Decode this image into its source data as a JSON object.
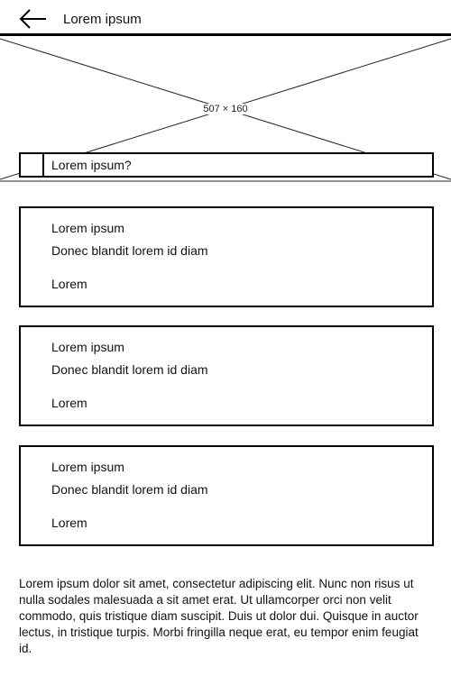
{
  "header": {
    "title": "Lorem ipsum",
    "back_icon": "arrow-left-icon"
  },
  "banner": {
    "dimensions_label": "507 × 160"
  },
  "question": {
    "label": "Lorem ipsum?"
  },
  "cards": [
    {
      "title": "Lorem ipsum",
      "subtitle": "Donec blandit lorem id diam",
      "link": "Lorem"
    },
    {
      "title": "Lorem ipsum",
      "subtitle": "Donec blandit lorem id diam",
      "link": "Lorem"
    },
    {
      "title": "Lorem ipsum",
      "subtitle": "Donec blandit lorem id diam",
      "link": "Lorem"
    }
  ],
  "body_text": "Lorem ipsum dolor sit amet, consectetur adipiscing elit. Nunc non risus ut nulla sodales malesuada a sit amet erat. Ut ullamcorper orci non velit commodo, quis tristique diam suscipit. Duis ut dolor dui. Quisque in auctor lectus, in tristique turpis. Morbi fringilla neque erat, eu tempor enim feugiat id."
}
